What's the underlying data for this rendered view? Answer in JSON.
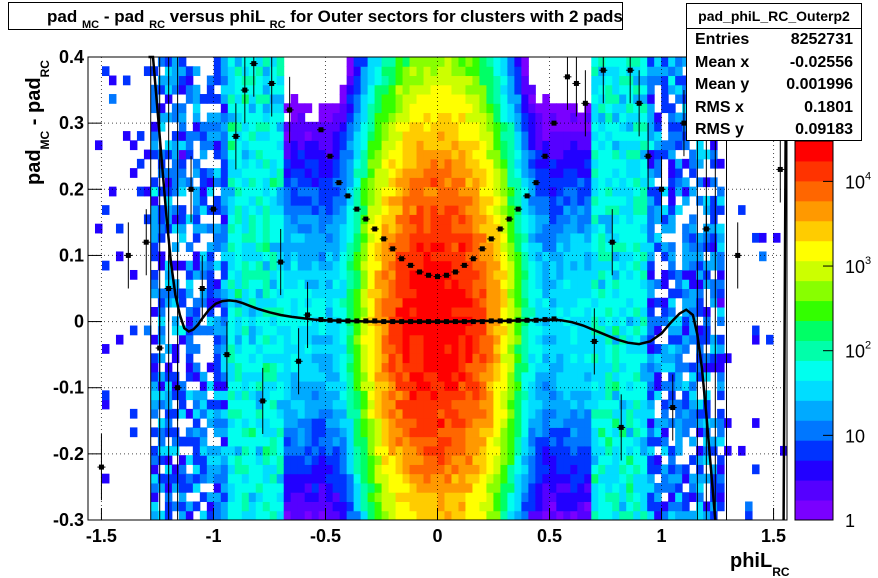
{
  "title": {
    "parts": [
      "pad",
      "MC",
      " - pad",
      "RC",
      " versus phiL",
      "RC",
      " for Outer sectors for clusters with 2 pads"
    ]
  },
  "stats": {
    "name": "pad_phiL_RC_Outerp2",
    "rows": [
      {
        "label": "Entries",
        "value": "8252731"
      },
      {
        "label": "Mean x",
        "value": "-0.02556"
      },
      {
        "label": "Mean y",
        "value": "0.001996"
      },
      {
        "label": "RMS x",
        "value": "0.1801"
      },
      {
        "label": "RMS y",
        "value": "0.09183"
      }
    ]
  },
  "colors": {
    "palette": [
      "#7a00ff",
      "#5500ff",
      "#2200ff",
      "#0033ff",
      "#0077ff",
      "#00aaff",
      "#00ddff",
      "#00ffee",
      "#00ffaa",
      "#00ff66",
      "#33ff00",
      "#88ff00",
      "#ccff00",
      "#ffff00",
      "#ffcc00",
      "#ff9900",
      "#ff6600",
      "#ff3300",
      "#ff0000"
    ],
    "profile": "#000000",
    "fit": "#000000"
  },
  "chart_data": {
    "type": "heatmap",
    "x_axis": {
      "label_main": "phiL",
      "label_sub": "RC",
      "range": [
        -1.56,
        1.56
      ],
      "ticks": [
        -1.5,
        -1,
        -0.5,
        0,
        0.5,
        1,
        1.5
      ],
      "tick_labels": [
        "-1.5",
        "-1",
        "-0.5",
        "0",
        "0.5",
        "1",
        "1.5"
      ]
    },
    "y_axis": {
      "label_parts": [
        "pad",
        "MC",
        " - pad",
        "RC"
      ],
      "range": [
        -0.3,
        0.4
      ],
      "ticks": [
        -0.3,
        -0.2,
        -0.1,
        0,
        0.1,
        0.2,
        0.3,
        0.4
      ],
      "tick_labels": [
        "-0.3",
        "-0.2",
        "-0.1",
        "0",
        "0.1",
        "0.2",
        "0.3",
        "0.4"
      ]
    },
    "z_axis": {
      "scale": "log",
      "range": [
        1,
        30000
      ],
      "tick_labels": [
        {
          "value": 1,
          "base": "1",
          "exp": ""
        },
        {
          "value": 10,
          "base": "10",
          "exp": ""
        },
        {
          "value": 100,
          "base": "10",
          "exp": "2"
        },
        {
          "value": 1000,
          "base": "10",
          "exp": "3"
        },
        {
          "value": 10000,
          "base": "10",
          "exp": "4"
        }
      ]
    },
    "grid": true,
    "profile_inner": {
      "x": [
        -0.52,
        -0.48,
        -0.44,
        -0.4,
        -0.36,
        -0.32,
        -0.28,
        -0.24,
        -0.2,
        -0.16,
        -0.12,
        -0.08,
        -0.04,
        0.0,
        0.04,
        0.08,
        0.12,
        0.16,
        0.2,
        0.24,
        0.28,
        0.32,
        0.36,
        0.4,
        0.44,
        0.48,
        0.52
      ],
      "y": [
        0.003,
        0.002,
        0.001,
        0.001,
        0.001,
        0.001,
        0.001,
        0.0,
        0.0,
        0.0,
        0.0,
        0.0,
        0.0,
        0.0,
        0.0,
        0.0,
        0.0,
        0.0,
        0.0,
        0.001,
        0.001,
        0.001,
        0.002,
        0.002,
        0.002,
        0.003,
        0.004
      ]
    },
    "profile_parabola": {
      "x": [
        -0.52,
        -0.48,
        -0.44,
        -0.4,
        -0.36,
        -0.32,
        -0.28,
        -0.24,
        -0.2,
        -0.16,
        -0.12,
        -0.08,
        -0.04,
        0.0,
        0.04,
        0.08,
        0.12,
        0.16,
        0.2,
        0.24,
        0.28,
        0.32,
        0.36,
        0.4,
        0.44,
        0.48,
        0.52
      ],
      "y": [
        0.29,
        0.25,
        0.21,
        0.19,
        0.17,
        0.155,
        0.14,
        0.125,
        0.11,
        0.095,
        0.085,
        0.075,
        0.07,
        0.068,
        0.07,
        0.075,
        0.085,
        0.095,
        0.11,
        0.125,
        0.14,
        0.155,
        0.17,
        0.19,
        0.21,
        0.25,
        0.3
      ]
    },
    "profile_outer": {
      "x": [
        -1.5,
        -1.38,
        -1.3,
        -1.24,
        -1.2,
        -1.16,
        -1.1,
        -1.05,
        -1.0,
        -0.94,
        -0.9,
        -0.86,
        -0.82,
        -0.78,
        -0.74,
        -0.7,
        -0.66,
        -0.62,
        -0.58,
        0.58,
        0.62,
        0.66,
        0.7,
        0.74,
        0.78,
        0.82,
        0.86,
        0.9,
        0.94,
        1.0,
        1.05,
        1.1,
        1.14,
        1.2,
        1.26,
        1.34,
        1.42,
        1.53
      ],
      "y": [
        -0.22,
        0.1,
        0.12,
        -0.04,
        0.05,
        -0.1,
        0.2,
        0.05,
        0.17,
        -0.05,
        0.28,
        0.35,
        0.39,
        -0.12,
        0.36,
        0.09,
        0.32,
        -0.06,
        0.01,
        0.37,
        0.36,
        0.33,
        -0.03,
        0.38,
        0.12,
        -0.16,
        0.38,
        0.33,
        0.25,
        0.2,
        -0.13,
        0.3,
        0.35,
        0.14,
        0.35,
        0.1,
        0.37,
        0.23
      ]
    },
    "fit_curve": {
      "x": [
        -1.29,
        -1.27,
        -1.25,
        -1.23,
        -1.21,
        -1.19,
        -1.17,
        -1.15,
        -1.13,
        -1.11,
        -1.09,
        -1.07,
        -1.05,
        -1.02,
        -0.99,
        -0.96,
        -0.93,
        -0.9,
        -0.87,
        -0.84,
        -0.8,
        -0.75,
        -0.7,
        -0.65,
        -0.6,
        -0.55,
        -0.5,
        -0.4,
        -0.3,
        -0.2,
        -0.1,
        0.0,
        0.1,
        0.2,
        0.3,
        0.4,
        0.5,
        0.55,
        0.6,
        0.65,
        0.7,
        0.75,
        0.8,
        0.85,
        0.9,
        0.95,
        1.0,
        1.04,
        1.08,
        1.11,
        1.14,
        1.16,
        1.18,
        1.2,
        1.22,
        1.24
      ],
      "y": [
        0.45,
        0.4,
        0.32,
        0.24,
        0.16,
        0.09,
        0.04,
        0.01,
        -0.01,
        -0.015,
        -0.012,
        -0.005,
        0.005,
        0.018,
        0.027,
        0.031,
        0.032,
        0.031,
        0.028,
        0.024,
        0.019,
        0.014,
        0.01,
        0.007,
        0.005,
        0.003,
        0.002,
        0.001,
        0.0,
        0.0,
        0.0,
        0.0,
        0.0,
        0.001,
        0.001,
        0.002,
        0.003,
        0.002,
        -0.001,
        -0.006,
        -0.013,
        -0.02,
        -0.027,
        -0.032,
        -0.034,
        -0.03,
        -0.018,
        -0.002,
        0.012,
        0.018,
        0.01,
        -0.02,
        -0.07,
        -0.14,
        -0.22,
        -0.32
      ]
    },
    "fit_right_edge": {
      "x": [
        1.545,
        1.548,
        1.551,
        1.554,
        1.557
      ],
      "y": [
        -0.3,
        -0.1,
        0.1,
        0.3,
        0.42
      ]
    }
  }
}
